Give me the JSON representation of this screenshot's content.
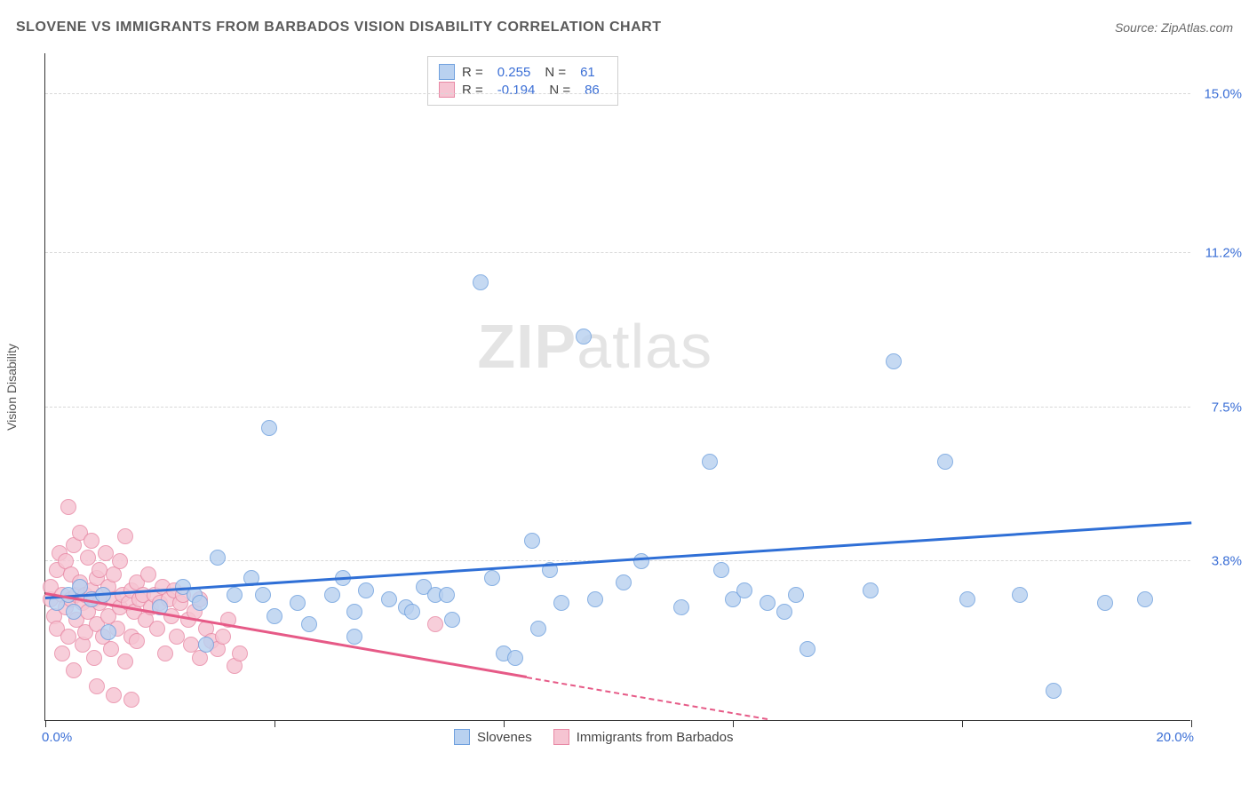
{
  "title": "SLOVENE VS IMMIGRANTS FROM BARBADOS VISION DISABILITY CORRELATION CHART",
  "source": "Source: ZipAtlas.com",
  "watermark_bold": "ZIP",
  "watermark_light": "atlas",
  "chart": {
    "type": "scatter",
    "ylabel": "Vision Disability",
    "xlim": [
      0,
      20
    ],
    "ylim": [
      0,
      16
    ],
    "x_min_label": "0.0%",
    "x_max_label": "20.0%",
    "ytick_labels": [
      {
        "v": 3.8,
        "label": "3.8%"
      },
      {
        "v": 7.5,
        "label": "7.5%"
      },
      {
        "v": 11.2,
        "label": "11.2%"
      },
      {
        "v": 15.0,
        "label": "15.0%"
      }
    ],
    "xtick_positions": [
      0,
      4,
      8,
      12,
      16,
      20
    ],
    "gridline_color": "#d8d8d8",
    "background_color": "#ffffff",
    "series": [
      {
        "name": "Slovenes",
        "color_fill": "#b9d1f0",
        "color_stroke": "#6fa0de",
        "marker_radius": 9,
        "R": "0.255",
        "N": "61",
        "trend": {
          "color": "#2f6fd6",
          "x1": 0,
          "y1": 2.9,
          "x2": 20,
          "y2": 4.7,
          "solid_until_x": 20
        },
        "points": [
          [
            0.2,
            2.8
          ],
          [
            0.4,
            3.0
          ],
          [
            0.5,
            2.6
          ],
          [
            0.6,
            3.2
          ],
          [
            0.8,
            2.9
          ],
          [
            1.0,
            3.0
          ],
          [
            1.1,
            2.1
          ],
          [
            2.4,
            3.2
          ],
          [
            2.6,
            3.0
          ],
          [
            2.7,
            2.8
          ],
          [
            2.8,
            1.8
          ],
          [
            3.0,
            3.9
          ],
          [
            3.3,
            3.0
          ],
          [
            3.6,
            3.4
          ],
          [
            3.9,
            7.0
          ],
          [
            3.8,
            3.0
          ],
          [
            4.4,
            2.8
          ],
          [
            4.6,
            2.3
          ],
          [
            5.0,
            3.0
          ],
          [
            5.2,
            3.4
          ],
          [
            5.4,
            2.6
          ],
          [
            5.4,
            2.0
          ],
          [
            5.6,
            3.1
          ],
          [
            6.0,
            2.9
          ],
          [
            6.3,
            2.7
          ],
          [
            6.6,
            3.2
          ],
          [
            6.8,
            3.0
          ],
          [
            7.0,
            3.0
          ],
          [
            7.1,
            2.4
          ],
          [
            7.6,
            10.5
          ],
          [
            7.8,
            3.4
          ],
          [
            8.0,
            1.6
          ],
          [
            8.2,
            1.5
          ],
          [
            8.5,
            4.3
          ],
          [
            8.6,
            2.2
          ],
          [
            8.8,
            3.6
          ],
          [
            9.4,
            9.2
          ],
          [
            9.6,
            2.9
          ],
          [
            10.1,
            3.3
          ],
          [
            10.4,
            3.8
          ],
          [
            11.1,
            2.7
          ],
          [
            11.6,
            6.2
          ],
          [
            12.0,
            2.9
          ],
          [
            12.2,
            3.1
          ],
          [
            12.6,
            2.8
          ],
          [
            12.9,
            2.6
          ],
          [
            13.1,
            3.0
          ],
          [
            13.3,
            1.7
          ],
          [
            14.4,
            3.1
          ],
          [
            14.8,
            8.6
          ],
          [
            15.7,
            6.2
          ],
          [
            16.1,
            2.9
          ],
          [
            17.6,
            0.7
          ],
          [
            18.5,
            2.8
          ],
          [
            19.2,
            2.9
          ],
          [
            17.0,
            3.0
          ],
          [
            11.8,
            3.6
          ],
          [
            9.0,
            2.8
          ],
          [
            6.4,
            2.6
          ],
          [
            4.0,
            2.5
          ],
          [
            2.0,
            2.7
          ]
        ]
      },
      {
        "name": "Immigrants from Barbados",
        "color_fill": "#f6c4d2",
        "color_stroke": "#e889a5",
        "marker_radius": 9,
        "R": "-0.194",
        "N": "86",
        "trend": {
          "color": "#e65a87",
          "x1": 0,
          "y1": 3.0,
          "x2": 12.6,
          "y2": 0.0,
          "solid_until_x": 8.4
        },
        "points": [
          [
            0.1,
            2.9
          ],
          [
            0.1,
            3.2
          ],
          [
            0.15,
            2.5
          ],
          [
            0.2,
            3.6
          ],
          [
            0.2,
            2.2
          ],
          [
            0.25,
            4.0
          ],
          [
            0.3,
            1.6
          ],
          [
            0.3,
            3.0
          ],
          [
            0.35,
            2.7
          ],
          [
            0.35,
            3.8
          ],
          [
            0.4,
            5.1
          ],
          [
            0.4,
            2.0
          ],
          [
            0.45,
            2.9
          ],
          [
            0.45,
            3.5
          ],
          [
            0.5,
            4.2
          ],
          [
            0.5,
            1.2
          ],
          [
            0.55,
            3.0
          ],
          [
            0.55,
            2.4
          ],
          [
            0.6,
            3.3
          ],
          [
            0.6,
            4.5
          ],
          [
            0.65,
            2.8
          ],
          [
            0.65,
            1.8
          ],
          [
            0.7,
            3.0
          ],
          [
            0.7,
            2.1
          ],
          [
            0.75,
            3.9
          ],
          [
            0.75,
            2.6
          ],
          [
            0.8,
            3.1
          ],
          [
            0.8,
            4.3
          ],
          [
            0.85,
            2.9
          ],
          [
            0.85,
            1.5
          ],
          [
            0.9,
            3.4
          ],
          [
            0.9,
            2.3
          ],
          [
            0.95,
            2.8
          ],
          [
            0.95,
            3.6
          ],
          [
            1.0,
            2.0
          ],
          [
            1.0,
            3.0
          ],
          [
            1.05,
            4.0
          ],
          [
            1.1,
            2.5
          ],
          [
            1.1,
            3.2
          ],
          [
            1.15,
            1.7
          ],
          [
            1.2,
            2.9
          ],
          [
            1.2,
            3.5
          ],
          [
            1.25,
            2.2
          ],
          [
            1.3,
            3.8
          ],
          [
            1.3,
            2.7
          ],
          [
            1.35,
            3.0
          ],
          [
            1.4,
            4.4
          ],
          [
            1.4,
            1.4
          ],
          [
            1.45,
            2.8
          ],
          [
            1.5,
            3.1
          ],
          [
            1.5,
            2.0
          ],
          [
            1.55,
            2.6
          ],
          [
            1.6,
            3.3
          ],
          [
            1.6,
            1.9
          ],
          [
            1.65,
            2.9
          ],
          [
            1.7,
            3.0
          ],
          [
            1.75,
            2.4
          ],
          [
            1.8,
            3.5
          ],
          [
            1.85,
            2.7
          ],
          [
            1.9,
            3.0
          ],
          [
            1.95,
            2.2
          ],
          [
            2.0,
            2.8
          ],
          [
            2.05,
            3.2
          ],
          [
            2.1,
            1.6
          ],
          [
            2.15,
            2.9
          ],
          [
            2.2,
            2.5
          ],
          [
            2.25,
            3.1
          ],
          [
            2.3,
            2.0
          ],
          [
            2.35,
            2.8
          ],
          [
            2.4,
            3.0
          ],
          [
            2.5,
            2.4
          ],
          [
            2.55,
            1.8
          ],
          [
            2.6,
            2.6
          ],
          [
            2.7,
            1.5
          ],
          [
            2.8,
            2.2
          ],
          [
            2.9,
            1.9
          ],
          [
            3.0,
            1.7
          ],
          [
            3.1,
            2.0
          ],
          [
            3.2,
            2.4
          ],
          [
            3.3,
            1.3
          ],
          [
            3.4,
            1.6
          ],
          [
            0.9,
            0.8
          ],
          [
            1.2,
            0.6
          ],
          [
            1.5,
            0.5
          ],
          [
            6.8,
            2.3
          ],
          [
            2.7,
            2.9
          ]
        ]
      }
    ]
  },
  "legend_bottom": {
    "items": [
      "Slovenes",
      "Immigrants from Barbados"
    ]
  }
}
